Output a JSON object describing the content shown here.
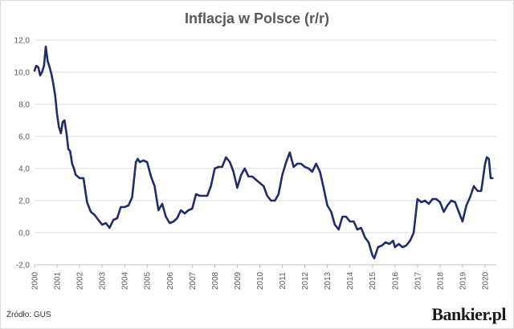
{
  "chart_data": {
    "type": "line",
    "title": "Inflacja w Polsce (r/r)",
    "xlabel": "",
    "ylabel": "",
    "ylim": [
      -2.0,
      12.0
    ],
    "yticks": [
      "12,0",
      "10,0",
      "8,0",
      "6,0",
      "4,0",
      "2,0",
      "0,0",
      "-2,0"
    ],
    "xticks": [
      "2000",
      "2001",
      "2002",
      "2003",
      "2004",
      "2005",
      "2006",
      "2007",
      "2008",
      "2009",
      "2010",
      "2011",
      "2012",
      "2013",
      "2014",
      "2015",
      "2016",
      "2017",
      "2018",
      "2019",
      "2020"
    ],
    "grid": "horizontal",
    "line_color": "#1f2d6b",
    "series": [
      {
        "x": [
          2000.0,
          2000.08,
          2000.17,
          2000.25,
          2000.33,
          2000.42,
          2000.5,
          2000.58,
          2000.67,
          2000.75,
          2000.83,
          2000.92,
          2001.0,
          2001.08,
          2001.17,
          2001.25,
          2001.33,
          2001.42,
          2001.5,
          2001.58,
          2001.67,
          2001.75,
          2001.83,
          2001.92,
          2002.0,
          2002.17,
          2002.33,
          2002.5,
          2002.67,
          2002.83,
          2003.0,
          2003.17,
          2003.33,
          2003.5,
          2003.67,
          2003.83,
          2004.0,
          2004.17,
          2004.33,
          2004.5,
          2004.58,
          2004.67,
          2004.83,
          2005.0,
          2005.17,
          2005.33,
          2005.5,
          2005.67,
          2005.83,
          2006.0,
          2006.17,
          2006.33,
          2006.5,
          2006.67,
          2006.83,
          2007.0,
          2007.17,
          2007.33,
          2007.5,
          2007.67,
          2007.83,
          2008.0,
          2008.17,
          2008.33,
          2008.5,
          2008.67,
          2008.83,
          2009.0,
          2009.17,
          2009.33,
          2009.5,
          2009.67,
          2009.83,
          2010.0,
          2010.17,
          2010.33,
          2010.5,
          2010.67,
          2010.83,
          2011.0,
          2011.17,
          2011.33,
          2011.5,
          2011.67,
          2011.83,
          2012.0,
          2012.17,
          2012.33,
          2012.5,
          2012.67,
          2012.83,
          2013.0,
          2013.17,
          2013.33,
          2013.5,
          2013.67,
          2013.83,
          2014.0,
          2014.17,
          2014.33,
          2014.5,
          2014.67,
          2014.83,
          2015.0,
          2015.08,
          2015.25,
          2015.42,
          2015.58,
          2015.75,
          2015.92,
          2016.0,
          2016.17,
          2016.33,
          2016.5,
          2016.67,
          2016.83,
          2017.0,
          2017.17,
          2017.33,
          2017.5,
          2017.67,
          2017.83,
          2018.0,
          2018.17,
          2018.33,
          2018.5,
          2018.67,
          2018.83,
          2019.0,
          2019.17,
          2019.33,
          2019.5,
          2019.67,
          2019.83,
          2020.0,
          2020.08,
          2020.17,
          2020.25,
          2020.33
        ],
        "y": [
          10.1,
          10.4,
          10.3,
          9.8,
          10.0,
          10.4,
          11.6,
          10.7,
          10.3,
          9.9,
          9.3,
          8.5,
          7.4,
          6.6,
          6.2,
          6.9,
          7.0,
          6.2,
          5.2,
          5.1,
          4.3,
          4.0,
          3.6,
          3.5,
          3.4,
          3.4,
          1.9,
          1.3,
          1.1,
          0.8,
          0.5,
          0.6,
          0.3,
          0.8,
          0.9,
          1.6,
          1.6,
          1.7,
          2.2,
          4.4,
          4.6,
          4.4,
          4.5,
          4.4,
          3.5,
          2.9,
          1.4,
          1.8,
          1.0,
          0.6,
          0.7,
          0.9,
          1.4,
          1.2,
          1.4,
          1.5,
          2.4,
          2.3,
          2.3,
          2.3,
          2.9,
          4.0,
          4.1,
          4.1,
          4.7,
          4.4,
          3.8,
          2.8,
          3.6,
          4.0,
          3.5,
          3.5,
          3.3,
          3.1,
          2.9,
          2.3,
          2.0,
          2.0,
          2.4,
          3.6,
          4.4,
          5.0,
          4.1,
          4.3,
          4.3,
          4.1,
          4.0,
          3.8,
          4.3,
          3.8,
          2.8,
          1.7,
          1.3,
          0.5,
          0.2,
          1.0,
          1.0,
          0.7,
          0.7,
          0.2,
          0.3,
          -0.3,
          -0.6,
          -1.4,
          -1.6,
          -0.9,
          -0.8,
          -0.6,
          -0.7,
          -0.5,
          -0.9,
          -0.7,
          -0.9,
          -0.8,
          -0.5,
          0.0,
          2.1,
          1.9,
          2.0,
          1.8,
          2.1,
          2.1,
          1.9,
          1.3,
          1.7,
          2.0,
          1.9,
          1.3,
          0.7,
          1.7,
          2.2,
          2.9,
          2.6,
          2.6,
          4.3,
          4.7,
          4.6,
          3.4,
          3.4
        ]
      }
    ]
  },
  "footer": {
    "source": "Źródło: GUS",
    "brand": "Bankier.pl"
  }
}
